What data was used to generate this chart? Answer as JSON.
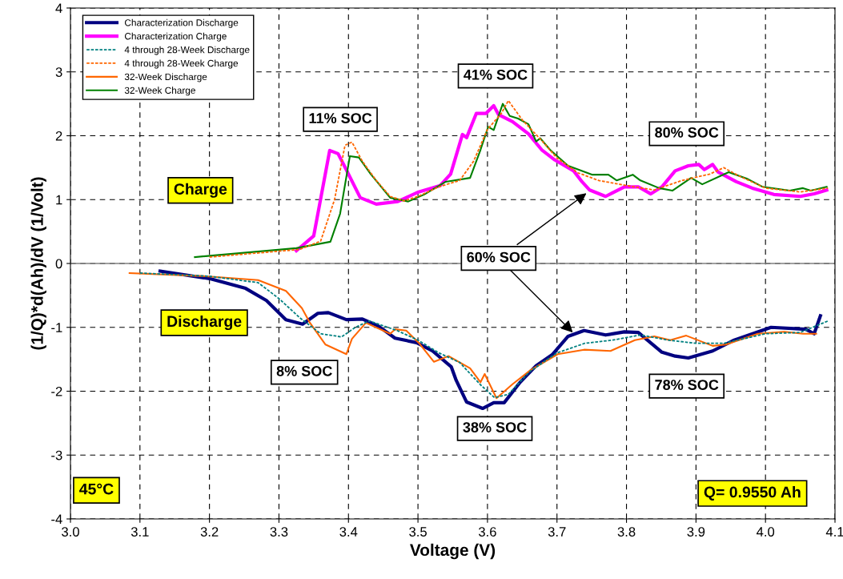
{
  "chart_data": {
    "type": "line",
    "xlabel": "Voltage (V)",
    "ylabel": "(1/Q)*d(Ah)/dV (1/Volt)",
    "xlim": [
      3.0,
      4.1
    ],
    "xticks": [
      {
        "value": 3.0,
        "label": "3.0"
      },
      3.1,
      3.2,
      3.3,
      3.4,
      {
        "value": 3.5,
        "label": "3.5"
      },
      3.6,
      3.7,
      3.8,
      3.9,
      {
        "value": 4.0,
        "label": "4.0"
      },
      4.1
    ],
    "ylim": [
      -4,
      4
    ],
    "yticks": [
      -4,
      -3,
      -2,
      -1,
      0,
      1,
      2,
      3,
      4
    ],
    "grid": true,
    "legend": "top left",
    "marker": "none",
    "ref_lines": [
      {
        "axis": "y",
        "value": 0,
        "color": "#808080",
        "line_style": "solid"
      }
    ],
    "series": [
      {
        "name": "Characterization Discharge",
        "color": "#000080",
        "line_style": "solid",
        "x": [
          3.129,
          3.202,
          3.252,
          3.282,
          3.31,
          3.334,
          3.356,
          3.371,
          3.397,
          3.42,
          3.443,
          3.467,
          3.498,
          3.521,
          3.548,
          3.555,
          3.57,
          3.593,
          3.609,
          3.624,
          3.647,
          3.67,
          3.693,
          3.716,
          3.739,
          3.77,
          3.797,
          3.817,
          3.851,
          3.87,
          3.889,
          3.924,
          3.955,
          4.008,
          4.058,
          4.07,
          4.079
        ],
        "values": [
          -0.12,
          -0.24,
          -0.39,
          -0.58,
          -0.88,
          -0.95,
          -0.78,
          -0.77,
          -0.88,
          -0.87,
          -0.98,
          -1.17,
          -1.24,
          -1.37,
          -1.62,
          -1.83,
          -2.17,
          -2.27,
          -2.18,
          -2.18,
          -1.86,
          -1.6,
          -1.43,
          -1.14,
          -1.05,
          -1.12,
          -1.07,
          -1.08,
          -1.39,
          -1.45,
          -1.48,
          -1.37,
          -1.2,
          -1.0,
          -1.03,
          -1.1,
          -0.82
        ]
      },
      {
        "name": "Characterization Charge",
        "color": "#ff00ff",
        "line_style": "solid",
        "x": [
          3.325,
          3.35,
          3.373,
          3.385,
          3.394,
          3.417,
          3.44,
          3.471,
          3.501,
          3.532,
          3.547,
          3.564,
          3.57,
          3.584,
          3.598,
          3.609,
          3.616,
          3.636,
          3.659,
          3.678,
          3.697,
          3.724,
          3.736,
          3.747,
          3.77,
          3.797,
          3.817,
          3.835,
          3.851,
          3.87,
          3.889,
          3.904,
          3.912,
          3.924,
          3.932,
          3.958,
          3.981,
          4.012,
          4.05,
          4.07,
          4.088
        ],
        "values": [
          0.2,
          0.43,
          1.77,
          1.72,
          1.53,
          1.03,
          0.93,
          0.97,
          1.12,
          1.22,
          1.4,
          2.02,
          1.97,
          2.35,
          2.35,
          2.47,
          2.33,
          2.22,
          2.03,
          1.78,
          1.62,
          1.45,
          1.28,
          1.15,
          1.05,
          1.2,
          1.2,
          1.09,
          1.2,
          1.45,
          1.53,
          1.55,
          1.47,
          1.55,
          1.43,
          1.28,
          1.18,
          1.08,
          1.05,
          1.09,
          1.15
        ]
      },
      {
        "name": "4 through 28-Week Discharge",
        "color": "#008080",
        "line_style": "dashed",
        "x": [
          3.1,
          3.2,
          3.27,
          3.3,
          3.33,
          3.36,
          3.39,
          3.41,
          3.43,
          3.47,
          3.5,
          3.53,
          3.56,
          3.59,
          3.61,
          3.63,
          3.66,
          3.7,
          3.74,
          3.78,
          3.82,
          3.86,
          3.9,
          3.94,
          4.0,
          4.05,
          4.09
        ],
        "values": [
          -0.15,
          -0.2,
          -0.3,
          -0.55,
          -0.85,
          -1.1,
          -1.15,
          -1.0,
          -0.9,
          -1.05,
          -1.2,
          -1.4,
          -1.55,
          -1.9,
          -2.1,
          -2.05,
          -1.7,
          -1.4,
          -1.25,
          -1.2,
          -1.12,
          -1.2,
          -1.25,
          -1.25,
          -1.1,
          -1.08,
          -0.9
        ]
      },
      {
        "name": "4 through 28-Week Charge",
        "color": "#ff6600",
        "line_style": "dashed",
        "x": [
          3.2,
          3.33,
          3.36,
          3.38,
          3.395,
          3.405,
          3.42,
          3.44,
          3.46,
          3.48,
          3.5,
          3.53,
          3.56,
          3.58,
          3.6,
          3.62,
          3.63,
          3.65,
          3.68,
          3.7,
          3.73,
          3.76,
          3.8,
          3.84,
          3.88,
          3.92,
          3.94,
          3.96,
          4.0,
          4.05,
          4.09
        ],
        "values": [
          0.1,
          0.22,
          0.35,
          1.0,
          1.85,
          1.9,
          1.6,
          1.3,
          1.05,
          0.98,
          1.05,
          1.2,
          1.3,
          1.6,
          2.1,
          2.35,
          2.55,
          2.25,
          1.9,
          1.65,
          1.42,
          1.3,
          1.22,
          1.15,
          1.3,
          1.4,
          1.5,
          1.38,
          1.18,
          1.12,
          1.18
        ]
      },
      {
        "name": "32-Week Discharge",
        "color": "#ff6600",
        "line_style": "solid",
        "x": [
          3.085,
          3.195,
          3.27,
          3.31,
          3.333,
          3.344,
          3.367,
          3.397,
          3.405,
          3.425,
          3.46,
          3.467,
          3.483,
          3.501,
          3.523,
          3.544,
          3.575,
          3.59,
          3.596,
          3.613,
          3.636,
          3.662,
          3.701,
          3.739,
          3.777,
          3.812,
          3.84,
          3.863,
          3.886,
          3.924,
          3.943,
          3.989,
          4.027,
          4.054,
          4.073
        ],
        "values": [
          -0.15,
          -0.2,
          -0.26,
          -0.43,
          -0.7,
          -0.92,
          -1.27,
          -1.42,
          -1.18,
          -0.93,
          -1.1,
          -1.03,
          -1.05,
          -1.24,
          -1.54,
          -1.45,
          -1.64,
          -1.86,
          -1.73,
          -2.11,
          -1.89,
          -1.67,
          -1.42,
          -1.35,
          -1.37,
          -1.2,
          -1.14,
          -1.2,
          -1.13,
          -1.29,
          -1.27,
          -1.1,
          -1.07,
          -1.1,
          -1.1
        ]
      },
      {
        "name": "32-Week Charge",
        "color": "#008000",
        "line_style": "solid",
        "x": [
          3.179,
          3.325,
          3.374,
          3.388,
          3.402,
          3.415,
          3.432,
          3.46,
          3.486,
          3.509,
          3.54,
          3.575,
          3.59,
          3.601,
          3.609,
          3.622,
          3.632,
          3.644,
          3.659,
          3.67,
          3.676,
          3.69,
          3.716,
          3.751,
          3.774,
          3.786,
          3.809,
          3.82,
          3.847,
          3.866,
          3.893,
          3.909,
          3.947,
          3.973,
          3.996,
          4.035,
          4.054,
          4.065,
          4.088
        ],
        "values": [
          0.1,
          0.24,
          0.34,
          0.78,
          1.68,
          1.66,
          1.4,
          1.03,
          0.97,
          1.08,
          1.28,
          1.34,
          1.78,
          2.14,
          2.09,
          2.5,
          2.31,
          2.27,
          2.18,
          1.91,
          1.96,
          1.78,
          1.53,
          1.39,
          1.39,
          1.3,
          1.39,
          1.3,
          1.18,
          1.14,
          1.34,
          1.24,
          1.43,
          1.33,
          1.2,
          1.14,
          1.18,
          1.14,
          1.2
        ]
      }
    ],
    "annotations": [
      "11% SOC",
      "41% SOC",
      "80% SOC",
      "8% SOC",
      "38% SOC",
      "78% SOC",
      {
        "text": "60% SOC",
        "x": 3.745,
        "y": 1.12
      },
      "Charge",
      "Discharge",
      "45°C",
      "Q= 0.9550 Ah"
    ]
  }
}
